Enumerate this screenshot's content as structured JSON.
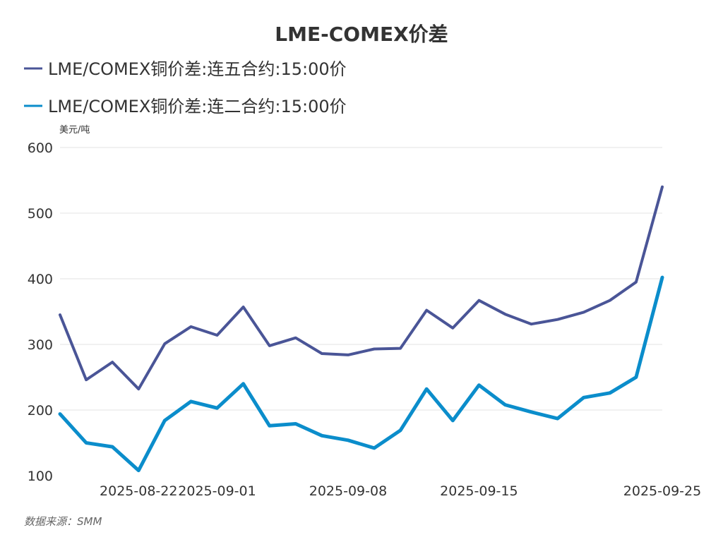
{
  "chart_data": {
    "type": "line",
    "title": "LME-COMEX价差",
    "unit_label": "美元/吨",
    "source": "数据来源：SMM",
    "ylim": [
      100,
      600
    ],
    "y_ticks": [
      100,
      200,
      300,
      400,
      500,
      600
    ],
    "x_tick_labels": [
      {
        "index": 3,
        "label": "2025-08-22"
      },
      {
        "index": 6,
        "label": "2025-09-01"
      },
      {
        "index": 11,
        "label": "2025-09-08"
      },
      {
        "index": 16,
        "label": "2025-09-15"
      },
      {
        "index": 23,
        "label": "2025-09-25"
      }
    ],
    "grid": true,
    "legend_position": "top-left",
    "series": [
      {
        "name": "LME/COMEX铜价差:连五合约:15:00价",
        "color": "#4a5597",
        "values": [
          345,
          246,
          273,
          232,
          301,
          327,
          314,
          357,
          298,
          310,
          286,
          284,
          293,
          294,
          352,
          325,
          367,
          346,
          331,
          338,
          349,
          367,
          395,
          540
        ]
      },
      {
        "name": "LME/COMEX铜价差:连二合约:15:00价",
        "color": "#0b8dcb",
        "values": [
          194,
          150,
          144,
          108,
          184,
          213,
          203,
          240,
          176,
          179,
          161,
          154,
          142,
          169,
          232,
          184,
          238,
          208,
          197,
          187,
          219,
          226,
          250,
          402
        ]
      }
    ]
  }
}
